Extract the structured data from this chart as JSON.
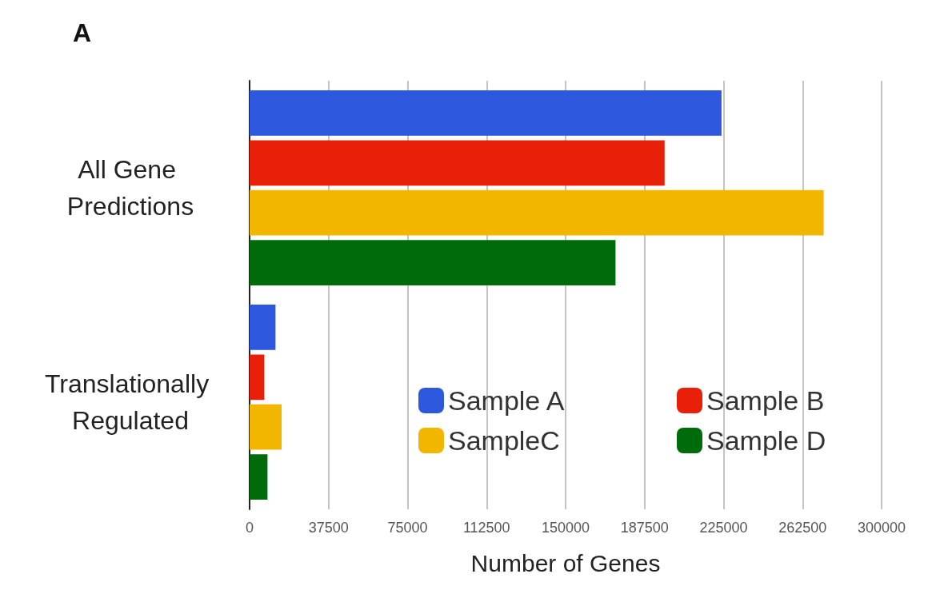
{
  "chart_data": {
    "type": "bar",
    "title": "A",
    "orientation": "horizontal",
    "xlabel": "Number of Genes",
    "categories": [
      "All Gene Predictions",
      "Translationally Regulated"
    ],
    "series": [
      {
        "name": "Sample A",
        "color": "#2d57dd",
        "values": [
          224000,
          12300
        ]
      },
      {
        "name": "Sample B",
        "color": "#e8200a",
        "values": [
          197000,
          7000
        ]
      },
      {
        "name": "SampleC",
        "color": "#f2b600",
        "values": [
          272500,
          15200
        ]
      },
      {
        "name": "Sample D",
        "color": "#006b0a",
        "values": [
          173700,
          8500
        ]
      }
    ],
    "xlim": [
      0,
      300000
    ],
    "xticks": [
      0,
      37500,
      75000,
      112500,
      150000,
      187500,
      225000,
      262500,
      300000
    ],
    "grid": "x",
    "legend": "bottom right"
  }
}
